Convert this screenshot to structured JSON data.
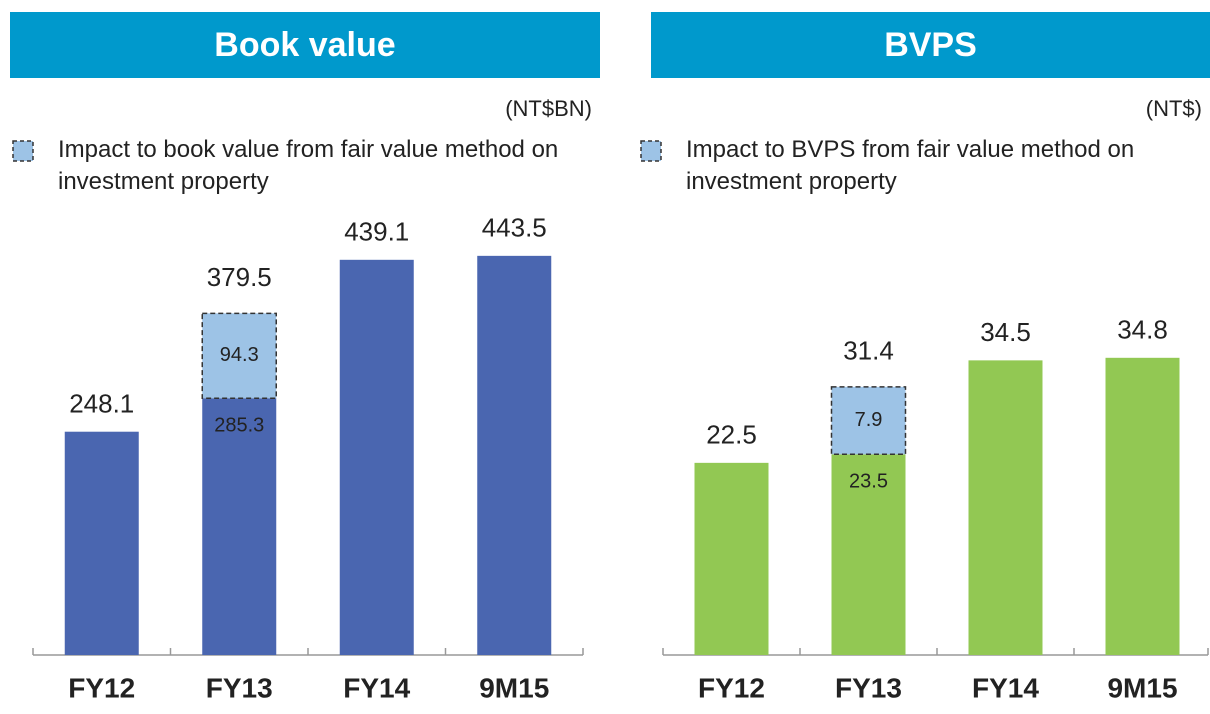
{
  "chart_data": [
    {
      "type": "stacked_bar",
      "title": "Book value",
      "unit": "(NT$BN)",
      "categories": [
        "FY12",
        "FY13",
        "FY14",
        "9M15"
      ],
      "series": [
        {
          "color": "#4a66b0",
          "values": [
            248.1,
            285.3,
            439.1,
            443.5
          ]
        },
        {
          "name": "Impact to book value from fair value method on investment property",
          "color": "#9dc3e6",
          "values": [
            null,
            94.3,
            null,
            null
          ]
        }
      ],
      "totals": [
        null,
        379.5,
        null,
        null
      ],
      "ylim": [
        0,
        500
      ]
    },
    {
      "type": "stacked_bar",
      "title": "BVPS",
      "unit": "(NT$)",
      "categories": [
        "FY12",
        "FY13",
        "FY14",
        "9M15"
      ],
      "series": [
        {
          "color": "#92c853",
          "values": [
            22.5,
            23.5,
            34.5,
            34.8
          ]
        },
        {
          "name": "Impact to BVPS from fair value method on investment property",
          "color": "#9dc3e6",
          "values": [
            null,
            7.9,
            null,
            null
          ]
        }
      ],
      "totals": [
        null,
        31.4,
        null,
        null
      ],
      "ylim": [
        0,
        50
      ]
    }
  ]
}
